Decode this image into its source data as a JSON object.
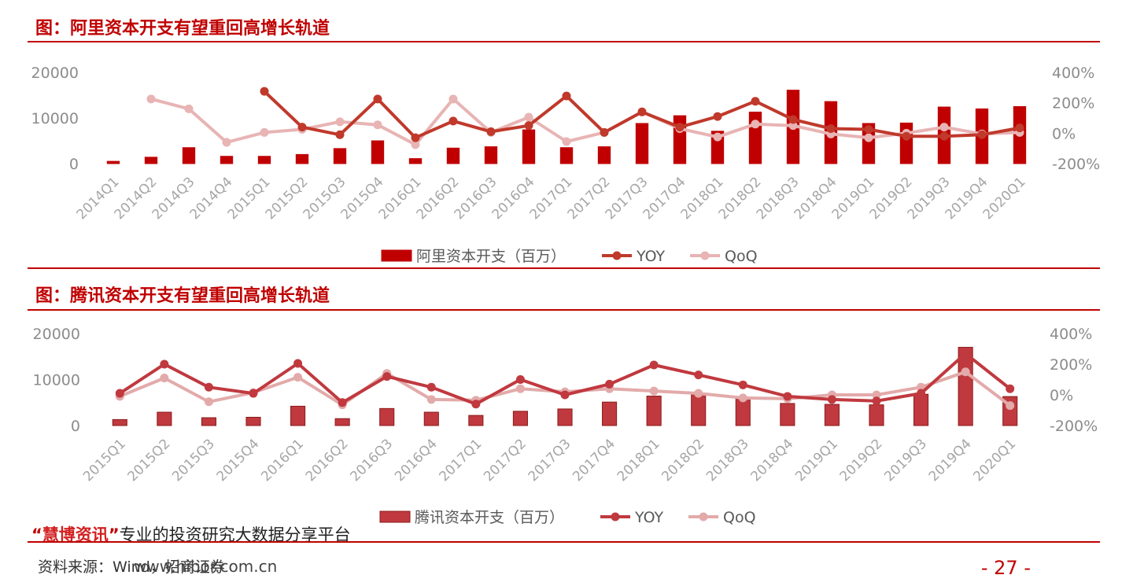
{
  "charts": [
    {
      "title": "图：阿里资本开支有望重回高增长轨道",
      "colors": {
        "bar": "#c00000",
        "bar_stroke": "#c00000",
        "yoy": "#c0392b",
        "qoq": "#e8b4b4"
      }
    },
    {
      "title": "图：腾讯资本开支有望重回高增长轨道",
      "colors": {
        "bar": "#c0393f",
        "bar_stroke": "#8b1a1a",
        "yoy": "#c0393f",
        "qoq": "#e3aaaa"
      }
    }
  ],
  "chart_data": [
    {
      "type": "bar+line",
      "categories": [
        "2014Q1",
        "2014Q2",
        "2014Q3",
        "2014Q4",
        "2015Q1",
        "2015Q2",
        "2015Q3",
        "2015Q4",
        "2016Q1",
        "2016Q2",
        "2016Q3",
        "2016Q4",
        "2017Q1",
        "2017Q2",
        "2017Q3",
        "2017Q4",
        "2018Q1",
        "2018Q2",
        "2018Q3",
        "2018Q4",
        "2019Q1",
        "2019Q2",
        "2019Q3",
        "2019Q4",
        "2020Q1"
      ],
      "series": [
        {
          "name": "阿里资本开支（百万）",
          "type": "bar",
          "axis": "left",
          "values": [
            500,
            1400,
            3500,
            1600,
            1600,
            2000,
            3300,
            5000,
            1100,
            3400,
            3700,
            7400,
            3500,
            3700,
            8800,
            10500,
            7100,
            11300,
            16100,
            13600,
            8800,
            8900,
            12400,
            12000,
            12500
          ]
        },
        {
          "name": "YOY",
          "type": "line",
          "axis": "right",
          "values": [
            null,
            null,
            null,
            null,
            275,
            40,
            -10,
            225,
            -30,
            80,
            10,
            50,
            245,
            5,
            140,
            40,
            110,
            210,
            90,
            30,
            25,
            -20,
            -20,
            -10,
            35
          ]
        },
        {
          "name": "QoQ",
          "type": "line",
          "axis": "right",
          "values": [
            null,
            225,
            160,
            -60,
            5,
            25,
            75,
            55,
            -75,
            225,
            5,
            105,
            -55,
            5,
            140,
            30,
            -25,
            60,
            50,
            -5,
            -30,
            0,
            40,
            -5,
            5
          ]
        }
      ],
      "yticks_left": [
        "20000",
        "10000",
        "0"
      ],
      "yticks_right": [
        "400%",
        "200%",
        "0%",
        "-200%"
      ],
      "ylim_left": [
        0,
        20000
      ],
      "ylim_right": [
        -200,
        400
      ],
      "legend_position": "bottom"
    },
    {
      "type": "bar+line",
      "categories": [
        "2015Q1",
        "2015Q2",
        "2015Q3",
        "2015Q4",
        "2016Q1",
        "2016Q2",
        "2016Q3",
        "2016Q4",
        "2017Q1",
        "2017Q2",
        "2017Q3",
        "2017Q4",
        "2018Q1",
        "2018Q2",
        "2018Q3",
        "2018Q4",
        "2019Q1",
        "2019Q2",
        "2019Q3",
        "2019Q4",
        "2020Q1"
      ],
      "series": [
        {
          "name": "腾讯资本开支（百万）",
          "type": "bar",
          "axis": "left",
          "values": [
            1300,
            2900,
            1700,
            1800,
            4200,
            1500,
            3700,
            2900,
            2200,
            3100,
            3600,
            5100,
            6400,
            6800,
            6000,
            4800,
            4600,
            4500,
            6800,
            17000,
            6300
          ]
        },
        {
          "name": "YOY",
          "type": "line",
          "axis": "right",
          "values": [
            10,
            200,
            50,
            10,
            205,
            -50,
            120,
            50,
            -60,
            100,
            0,
            70,
            195,
            130,
            65,
            -10,
            -30,
            -40,
            10,
            270,
            40
          ]
        },
        {
          "name": "QoQ",
          "type": "line",
          "axis": "right",
          "values": [
            -10,
            110,
            -45,
            15,
            115,
            -65,
            140,
            -30,
            -35,
            40,
            20,
            40,
            25,
            10,
            -20,
            -25,
            0,
            0,
            50,
            150,
            -70
          ]
        }
      ],
      "yticks_left": [
        "20000",
        "10000",
        "0"
      ],
      "yticks_right": [
        "400%",
        "200%",
        "0%",
        "-200%"
      ],
      "ylim_left": [
        0,
        20000
      ],
      "ylim_right": [
        -200,
        400
      ],
      "legend_position": "bottom"
    }
  ],
  "footer": {
    "promo_quote_open": "“",
    "promo_brand": "慧博资讯",
    "promo_quote_close": "”",
    "promo_text": "专业的投资研究大数据分享平台",
    "source_text": "资料来源：Wind，招商证券",
    "watermark": "www.hibor.com.cn",
    "page_number": "- 27 -"
  }
}
